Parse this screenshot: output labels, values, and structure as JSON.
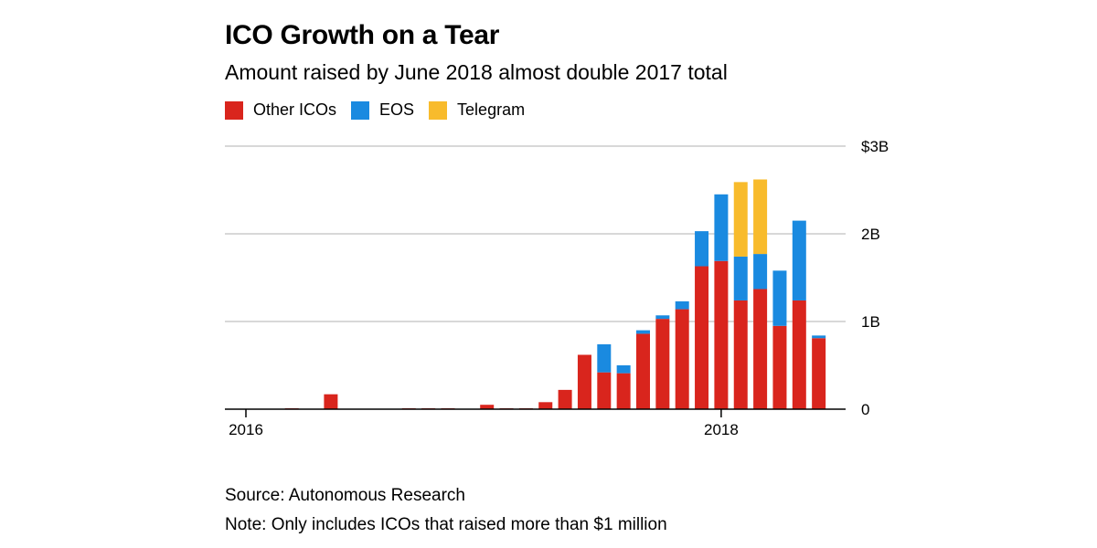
{
  "header": {
    "title": "ICO Growth on a Tear",
    "subtitle": "Amount raised by June 2018 almost double 2017 total"
  },
  "footer": {
    "source": "Source: Autonomous Research",
    "note": "Note: Only includes ICOs that raised more than $1 million"
  },
  "colors": {
    "other": "#d9251d",
    "eos": "#1a8ae0",
    "telegram": "#f8bb2c",
    "grid": "#cccccc",
    "axis": "#000000"
  },
  "chart_data": {
    "type": "bar",
    "stacked": true,
    "title": "ICO Growth on a Tear",
    "subtitle": "Amount raised by June 2018 almost double 2017 total",
    "legend": "top-left",
    "grid": true,
    "ylim": [
      0,
      3
    ],
    "y_ticks": [
      {
        "value": 0,
        "label": "0"
      },
      {
        "value": 1,
        "label": "1B"
      },
      {
        "value": 2,
        "label": "2B"
      },
      {
        "value": 3,
        "label": "$3B"
      }
    ],
    "x_ticks": [
      {
        "value": "2016-01",
        "label": "2016"
      },
      {
        "value": "2018-01",
        "label": "2018"
      }
    ],
    "categories": [
      "2016-01",
      "2016-02",
      "2016-03",
      "2016-04",
      "2016-05",
      "2016-06",
      "2016-07",
      "2016-08",
      "2016-09",
      "2016-10",
      "2016-11",
      "2016-12",
      "2017-01",
      "2017-02",
      "2017-03",
      "2017-04",
      "2017-05",
      "2017-06",
      "2017-07",
      "2017-08",
      "2017-09",
      "2017-10",
      "2017-11",
      "2017-12",
      "2018-01",
      "2018-02",
      "2018-03",
      "2018-04",
      "2018-05",
      "2018-06",
      "2018-07"
    ],
    "series": [
      {
        "name": "Other ICOs",
        "color_key": "other",
        "values": [
          0,
          0,
          0.01,
          0,
          0.17,
          0,
          0,
          0,
          0.01,
          0.01,
          0.01,
          0,
          0.05,
          0.01,
          0.01,
          0.08,
          0.22,
          0.62,
          0.42,
          0.41,
          0.86,
          1.03,
          1.14,
          1.63,
          1.69,
          1.24,
          1.37,
          0.95,
          1.24,
          0.81,
          0
        ]
      },
      {
        "name": "EOS",
        "color_key": "eos",
        "values": [
          0,
          0,
          0,
          0,
          0,
          0,
          0,
          0,
          0,
          0,
          0,
          0,
          0,
          0,
          0,
          0,
          0,
          0,
          0.32,
          0.09,
          0.04,
          0.04,
          0.09,
          0.4,
          0.76,
          0.5,
          0.4,
          0.63,
          0.91,
          0.03,
          0
        ]
      },
      {
        "name": "Telegram",
        "color_key": "telegram",
        "values": [
          0,
          0,
          0,
          0,
          0,
          0,
          0,
          0,
          0,
          0,
          0,
          0,
          0,
          0,
          0,
          0,
          0,
          0,
          0,
          0,
          0,
          0,
          0,
          0,
          0,
          0.85,
          0.85,
          0,
          0,
          0,
          0
        ]
      }
    ]
  }
}
